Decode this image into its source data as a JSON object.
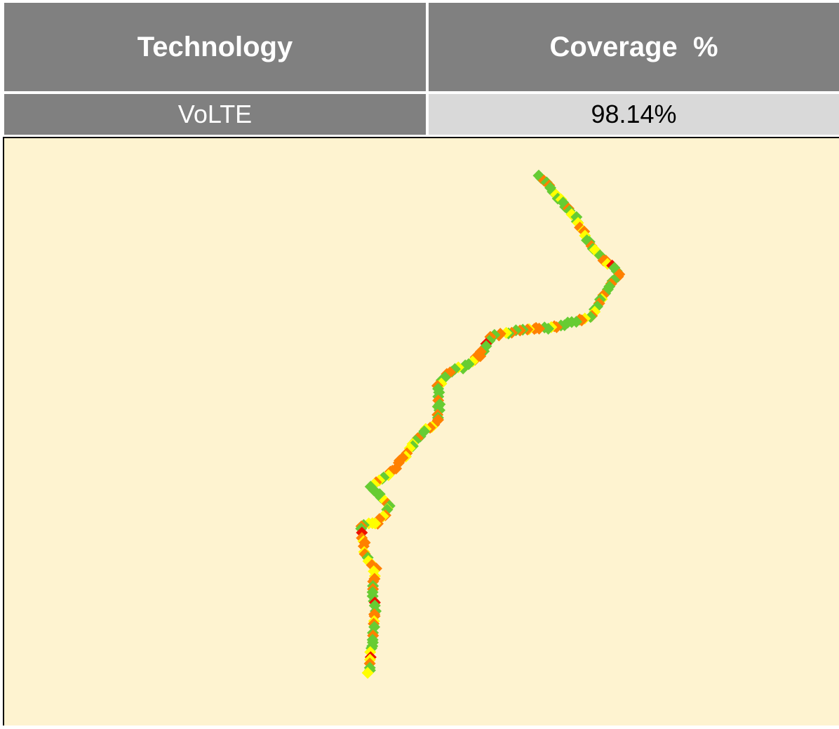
{
  "table": {
    "header": [
      "Technology",
      "Coverage  %"
    ],
    "rows": [
      [
        "VoLTE",
        "98.14%"
      ]
    ]
  }
}
